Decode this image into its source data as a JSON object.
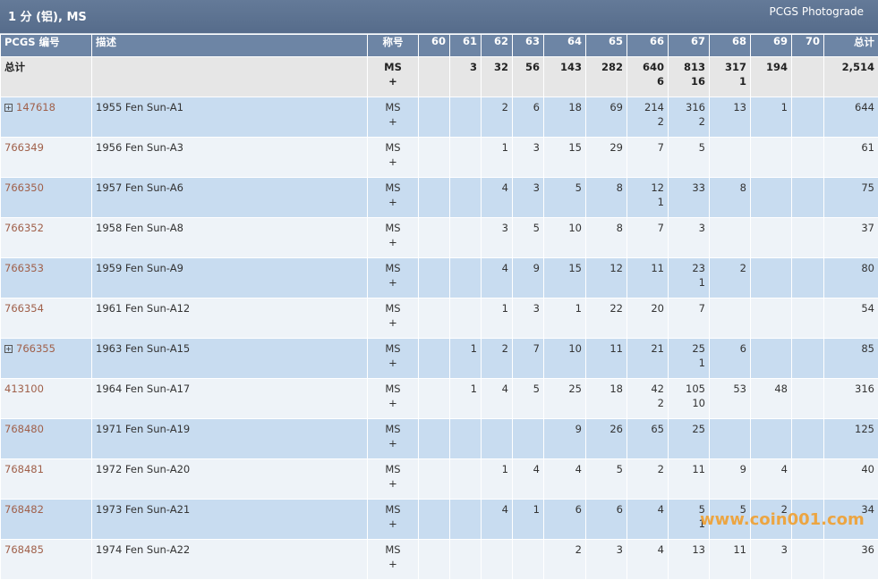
{
  "header": {
    "title": "1 分 (铝), MS",
    "link": "PCGS Photograde"
  },
  "table": {
    "columns": [
      "PCGS 编号",
      "描述",
      "称号",
      "60",
      "61",
      "62",
      "63",
      "64",
      "65",
      "66",
      "67",
      "68",
      "69",
      "70",
      "总计"
    ],
    "total_row": {
      "code": "总计",
      "designation": [
        "MS",
        "+"
      ],
      "grades": [
        [],
        [
          "3"
        ],
        [
          "32"
        ],
        [
          "56"
        ],
        [
          "143"
        ],
        [
          "282"
        ],
        [
          "640",
          "6"
        ],
        [
          "813",
          "16"
        ],
        [
          "317",
          "1"
        ],
        [
          "194"
        ],
        []
      ],
      "total": "2,514"
    },
    "rows": [
      {
        "code": "147618",
        "expandable": true,
        "description": "1955 Fen Sun-A1",
        "designation": [
          "MS",
          "+"
        ],
        "grades": [
          [],
          [],
          [
            "2"
          ],
          [
            "6"
          ],
          [
            "18"
          ],
          [
            "69"
          ],
          [
            "214",
            "2"
          ],
          [
            "316",
            "2"
          ],
          [
            "13"
          ],
          [
            "1"
          ],
          []
        ],
        "total": "644"
      },
      {
        "code": "766349",
        "expandable": false,
        "description": "1956 Fen Sun-A3",
        "designation": [
          "MS",
          "+"
        ],
        "grades": [
          [],
          [],
          [
            "1"
          ],
          [
            "3"
          ],
          [
            "15"
          ],
          [
            "29"
          ],
          [
            "7"
          ],
          [
            "5"
          ],
          [],
          [],
          []
        ],
        "total": "61"
      },
      {
        "code": "766350",
        "expandable": false,
        "description": "1957 Fen Sun-A6",
        "designation": [
          "MS",
          "+"
        ],
        "grades": [
          [],
          [],
          [
            "4"
          ],
          [
            "3"
          ],
          [
            "5"
          ],
          [
            "8"
          ],
          [
            "12",
            "1"
          ],
          [
            "33"
          ],
          [
            "8"
          ],
          [],
          []
        ],
        "total": "75"
      },
      {
        "code": "766352",
        "expandable": false,
        "description": "1958 Fen Sun-A8",
        "designation": [
          "MS",
          "+"
        ],
        "grades": [
          [],
          [],
          [
            "3"
          ],
          [
            "5"
          ],
          [
            "10"
          ],
          [
            "8"
          ],
          [
            "7"
          ],
          [
            "3"
          ],
          [],
          [],
          []
        ],
        "total": "37"
      },
      {
        "code": "766353",
        "expandable": false,
        "description": "1959 Fen Sun-A9",
        "designation": [
          "MS",
          "+"
        ],
        "grades": [
          [],
          [],
          [
            "4"
          ],
          [
            "9"
          ],
          [
            "15"
          ],
          [
            "12"
          ],
          [
            "11"
          ],
          [
            "23",
            "1"
          ],
          [
            "2"
          ],
          [],
          []
        ],
        "total": "80"
      },
      {
        "code": "766354",
        "expandable": false,
        "description": "1961 Fen Sun-A12",
        "designation": [
          "MS",
          "+"
        ],
        "grades": [
          [],
          [],
          [
            "1"
          ],
          [
            "3"
          ],
          [
            "1"
          ],
          [
            "22"
          ],
          [
            "20"
          ],
          [
            "7"
          ],
          [],
          [],
          []
        ],
        "total": "54"
      },
      {
        "code": "766355",
        "expandable": true,
        "description": "1963 Fen Sun-A15",
        "designation": [
          "MS",
          "+"
        ],
        "grades": [
          [],
          [
            "1"
          ],
          [
            "2"
          ],
          [
            "7"
          ],
          [
            "10"
          ],
          [
            "11"
          ],
          [
            "21"
          ],
          [
            "25",
            "1"
          ],
          [
            "6"
          ],
          [],
          []
        ],
        "total": "85"
      },
      {
        "code": "413100",
        "expandable": false,
        "description": "1964 Fen Sun-A17",
        "designation": [
          "MS",
          "+"
        ],
        "grades": [
          [],
          [
            "1"
          ],
          [
            "4"
          ],
          [
            "5"
          ],
          [
            "25"
          ],
          [
            "18"
          ],
          [
            "42",
            "2"
          ],
          [
            "105",
            "10"
          ],
          [
            "53"
          ],
          [
            "48"
          ],
          []
        ],
        "total": "316"
      },
      {
        "code": "768480",
        "expandable": false,
        "description": "1971 Fen Sun-A19",
        "designation": [
          "MS",
          "+"
        ],
        "grades": [
          [],
          [],
          [],
          [],
          [
            "9"
          ],
          [
            "26"
          ],
          [
            "65"
          ],
          [
            "25"
          ],
          [],
          [],
          []
        ],
        "total": "125"
      },
      {
        "code": "768481",
        "expandable": false,
        "description": "1972 Fen Sun-A20",
        "designation": [
          "MS",
          "+"
        ],
        "grades": [
          [],
          [],
          [
            "1"
          ],
          [
            "4"
          ],
          [
            "4"
          ],
          [
            "5"
          ],
          [
            "2"
          ],
          [
            "11"
          ],
          [
            "9"
          ],
          [
            "4"
          ],
          []
        ],
        "total": "40"
      },
      {
        "code": "768482",
        "expandable": false,
        "description": "1973 Fen Sun-A21",
        "designation": [
          "MS",
          "+"
        ],
        "grades": [
          [],
          [],
          [
            "4"
          ],
          [
            "1"
          ],
          [
            "6"
          ],
          [
            "6"
          ],
          [
            "4"
          ],
          [
            "5",
            "1"
          ],
          [
            "5"
          ],
          [
            "2"
          ],
          []
        ],
        "total": "34"
      },
      {
        "code": "768485",
        "expandable": false,
        "description": "1974 Fen Sun-A22",
        "designation": [
          "MS",
          "+"
        ],
        "grades": [
          [],
          [],
          [],
          [],
          [
            "2"
          ],
          [
            "3"
          ],
          [
            "4"
          ],
          [
            "13"
          ],
          [
            "11"
          ],
          [
            "3"
          ],
          []
        ],
        "total": "36"
      }
    ]
  },
  "watermark": "www.coin001.com"
}
